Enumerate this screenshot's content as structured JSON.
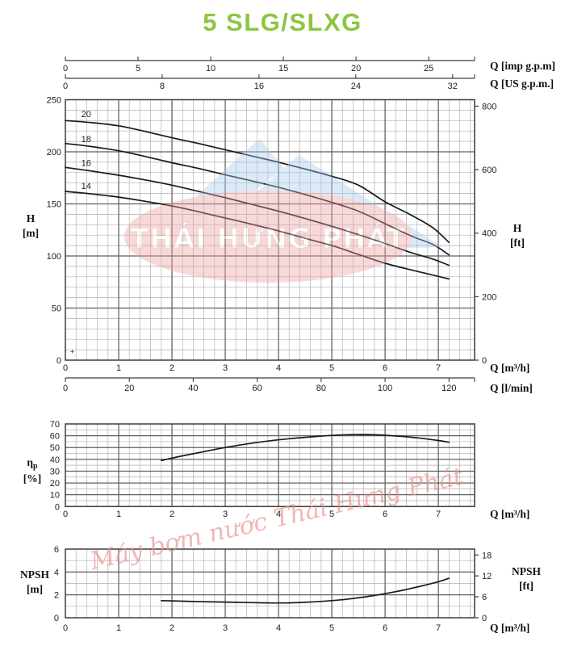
{
  "title": "5 SLG/SLXG",
  "watermark": {
    "brand": "THÁI HƯNG PHÁT",
    "tagline": "Máy bơm nước Thái Hưng Phát"
  },
  "colors": {
    "title_green": "#8cc641",
    "curve": "#1a1a1a",
    "grid_minor": "#b2b2b2",
    "grid_major": "#5f5f5f",
    "border": "#3d3d3d",
    "tick_text": "#222222",
    "watermark_blue": "#a9cdec",
    "watermark_pink": "#eca1a1",
    "watermark_script_pink": "#ea8f8f"
  },
  "chart_data": [
    {
      "id": "head",
      "type": "line",
      "xlim": [
        0,
        7.68
      ],
      "ylim": [
        0,
        250
      ],
      "x_ticks": [
        0,
        1,
        2,
        3,
        4,
        5,
        6,
        7
      ],
      "y_ticks": [
        0,
        50,
        100,
        150,
        200,
        250
      ],
      "x_minor": 0.2,
      "x_major": 1,
      "y_minor": 10,
      "y_major": 50,
      "left_axis": {
        "label_lines": [
          "H",
          "[m]"
        ]
      },
      "right_axis": {
        "label_lines": [
          "H",
          "[ft]"
        ],
        "ticks": [
          0,
          200,
          400,
          600,
          800
        ],
        "units_per_y": 3.2808
      },
      "bottom_axis_label": "Q [m³/h]",
      "secondary_bottom_axis": {
        "label": "Q [l/min]",
        "ticks": [
          0,
          20,
          40,
          60,
          80,
          100,
          120
        ],
        "units_per_x": 16.667
      },
      "top_axes": [
        {
          "label": "Q [imp g.p.m]",
          "ticks": [
            0,
            5,
            10,
            15,
            20,
            25
          ],
          "units_per_x": 3.6662
        },
        {
          "label": "Q [US g.p.m.]",
          "ticks": [
            0,
            8,
            16,
            24,
            32
          ],
          "units_per_x": 4.4029
        }
      ],
      "marker_plus": [
        0.13,
        8
      ],
      "series": [
        {
          "name": "20",
          "label_xy": [
            0.39,
            236
          ],
          "points": [
            [
              0,
              230
            ],
            [
              0.5,
              228
            ],
            [
              1,
              225
            ],
            [
              1.5,
              219.5
            ],
            [
              2,
              213.5
            ],
            [
              2.5,
              208
            ],
            [
              3,
              202
            ],
            [
              3.5,
              196
            ],
            [
              4,
              190
            ],
            [
              4.5,
              183.5
            ],
            [
              5,
              176.5
            ],
            [
              5.5,
              168
            ],
            [
              6,
              152
            ],
            [
              6.5,
              139
            ],
            [
              6.9,
              127
            ],
            [
              7.2,
              113
            ]
          ]
        },
        {
          "name": "18",
          "label_xy": [
            0.39,
            212
          ],
          "points": [
            [
              0,
              208
            ],
            [
              0.5,
              205
            ],
            [
              1,
              201
            ],
            [
              1.5,
              195.5
            ],
            [
              2,
              189.5
            ],
            [
              2.5,
              184
            ],
            [
              3,
              178
            ],
            [
              3.5,
              172
            ],
            [
              4,
              166
            ],
            [
              4.5,
              159
            ],
            [
              5,
              151.5
            ],
            [
              5.5,
              143
            ],
            [
              6,
              131
            ],
            [
              6.5,
              119
            ],
            [
              6.9,
              111
            ],
            [
              7.2,
              101
            ]
          ]
        },
        {
          "name": "16",
          "label_xy": [
            0.39,
            189
          ],
          "points": [
            [
              0,
              185
            ],
            [
              0.5,
              181.5
            ],
            [
              1,
              177.5
            ],
            [
              1.5,
              173
            ],
            [
              2,
              168
            ],
            [
              2.5,
              162
            ],
            [
              3,
              156
            ],
            [
              3.5,
              149.5
            ],
            [
              4,
              143
            ],
            [
              4.5,
              136
            ],
            [
              5,
              128.5
            ],
            [
              5.5,
              120.5
            ],
            [
              6,
              112
            ],
            [
              6.5,
              103
            ],
            [
              6.9,
              97
            ],
            [
              7.2,
              91
            ]
          ]
        },
        {
          "name": "14",
          "label_xy": [
            0.39,
            167
          ],
          "points": [
            [
              0,
              162
            ],
            [
              0.5,
              159.5
            ],
            [
              1,
              156.5
            ],
            [
              1.5,
              152.5
            ],
            [
              2,
              148
            ],
            [
              2.5,
              142.5
            ],
            [
              3,
              136.5
            ],
            [
              3.5,
              130.5
            ],
            [
              4,
              124
            ],
            [
              4.5,
              117
            ],
            [
              5,
              110
            ],
            [
              5.5,
              101.5
            ],
            [
              6,
              93
            ],
            [
              6.5,
              86.5
            ],
            [
              7.2,
              78
            ]
          ]
        }
      ]
    },
    {
      "id": "eff",
      "type": "line",
      "xlim": [
        0,
        7.68
      ],
      "ylim": [
        0,
        70
      ],
      "x_ticks": [
        0,
        1,
        2,
        3,
        4,
        5,
        6,
        7
      ],
      "y_ticks": [
        0,
        10,
        20,
        30,
        40,
        50,
        60,
        70
      ],
      "x_minor": 0.2,
      "x_major": 1,
      "y_minor": 5,
      "y_major": 10,
      "left_axis": {
        "label_lines": [
          "η~p",
          "[%]"
        ]
      },
      "bottom_axis_label": "Q [m³/h]",
      "series": [
        {
          "name": "efficiency",
          "points": [
            [
              1.8,
              39
            ],
            [
              2.2,
              43
            ],
            [
              2.6,
              46.5
            ],
            [
              3,
              50
            ],
            [
              3.4,
              53
            ],
            [
              3.8,
              55.5
            ],
            [
              4.2,
              57.5
            ],
            [
              4.6,
              59
            ],
            [
              5,
              60.3
            ],
            [
              5.4,
              61
            ],
            [
              5.8,
              60.8
            ],
            [
              6.2,
              59.8
            ],
            [
              6.6,
              58.2
            ],
            [
              7,
              56
            ],
            [
              7.2,
              54.5
            ]
          ]
        }
      ]
    },
    {
      "id": "npsh",
      "type": "line",
      "xlim": [
        0,
        7.68
      ],
      "ylim": [
        0,
        6
      ],
      "x_ticks": [
        0,
        1,
        2,
        3,
        4,
        5,
        6,
        7
      ],
      "y_ticks": [
        0,
        2,
        4,
        6
      ],
      "x_minor": 0.2,
      "x_major": 1,
      "y_minor": 1,
      "y_major": 2,
      "left_axis": {
        "label_lines": [
          "NPSH",
          "[m]"
        ]
      },
      "right_axis": {
        "label_lines": [
          "NPSH",
          "[ft]"
        ],
        "ticks": [
          0,
          6,
          12,
          18
        ],
        "units_per_y": 3.2808
      },
      "bottom_axis_label": "Q [m³/h]",
      "series": [
        {
          "name": "npsh",
          "points": [
            [
              1.8,
              1.5
            ],
            [
              2.2,
              1.45
            ],
            [
              2.6,
              1.4
            ],
            [
              3,
              1.37
            ],
            [
              3.4,
              1.33
            ],
            [
              3.8,
              1.3
            ],
            [
              4.2,
              1.3
            ],
            [
              4.6,
              1.38
            ],
            [
              5,
              1.5
            ],
            [
              5.4,
              1.68
            ],
            [
              5.8,
              1.95
            ],
            [
              6.2,
              2.28
            ],
            [
              6.6,
              2.68
            ],
            [
              7,
              3.15
            ],
            [
              7.2,
              3.45
            ]
          ]
        }
      ]
    }
  ]
}
